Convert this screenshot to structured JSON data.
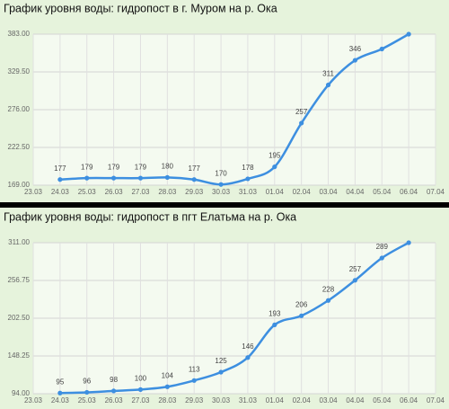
{
  "chart_data": [
    {
      "type": "line",
      "title": "График уровня воды: гидропост в г. Муром на р. Ока",
      "categories": [
        "23.03",
        "24.03",
        "25.03",
        "26.03",
        "27.03",
        "28.03",
        "29.03",
        "30.03",
        "31.03",
        "01.04",
        "02.04",
        "03.04",
        "04.04",
        "05.04",
        "06.04",
        "07.04"
      ],
      "values": [
        null,
        177,
        179,
        179,
        179,
        180,
        177,
        170,
        178,
        195,
        257,
        311,
        346,
        362,
        383,
        null
      ],
      "value_labels": [
        null,
        "177",
        "179",
        "179",
        "179",
        "180",
        "177",
        "170",
        "178",
        "195",
        "257",
        "311",
        "346",
        null,
        null,
        null
      ],
      "color": "#3d8fe0",
      "ylim": [
        169,
        383
      ],
      "yticks": [
        {
          "value": 169,
          "label": "169.00"
        },
        {
          "value": 222.5,
          "label": "222.50"
        },
        {
          "value": 276,
          "label": "276.00"
        },
        {
          "value": 329.5,
          "label": "329.50"
        },
        {
          "value": 383,
          "label": "383.00"
        }
      ],
      "grid": true
    },
    {
      "type": "line",
      "title": "График уровня воды: гидропост в пгт Елатьма на р. Ока",
      "categories": [
        "23.03",
        "24.03",
        "25.03",
        "26.03",
        "27.03",
        "28.03",
        "29.03",
        "30.03",
        "31.03",
        "01.04",
        "02.04",
        "03.04",
        "04.04",
        "05.04",
        "06.04",
        "07.04"
      ],
      "values": [
        null,
        95,
        96,
        98,
        100,
        104,
        113,
        125,
        146,
        193,
        206,
        228,
        257,
        289,
        311,
        null
      ],
      "value_labels": [
        null,
        "95",
        "96",
        "98",
        "100",
        "104",
        "113",
        "125",
        "146",
        "193",
        "206",
        "228",
        "257",
        "289",
        null,
        null
      ],
      "color": "#3d8fe0",
      "ylim": [
        94,
        311
      ],
      "yticks": [
        {
          "value": 94,
          "label": "94.00"
        },
        {
          "value": 148.25,
          "label": "148.25"
        },
        {
          "value": 202.5,
          "label": "202.50"
        },
        {
          "value": 256.75,
          "label": "256.75"
        },
        {
          "value": 311,
          "label": "311.00"
        }
      ],
      "grid": true
    }
  ]
}
